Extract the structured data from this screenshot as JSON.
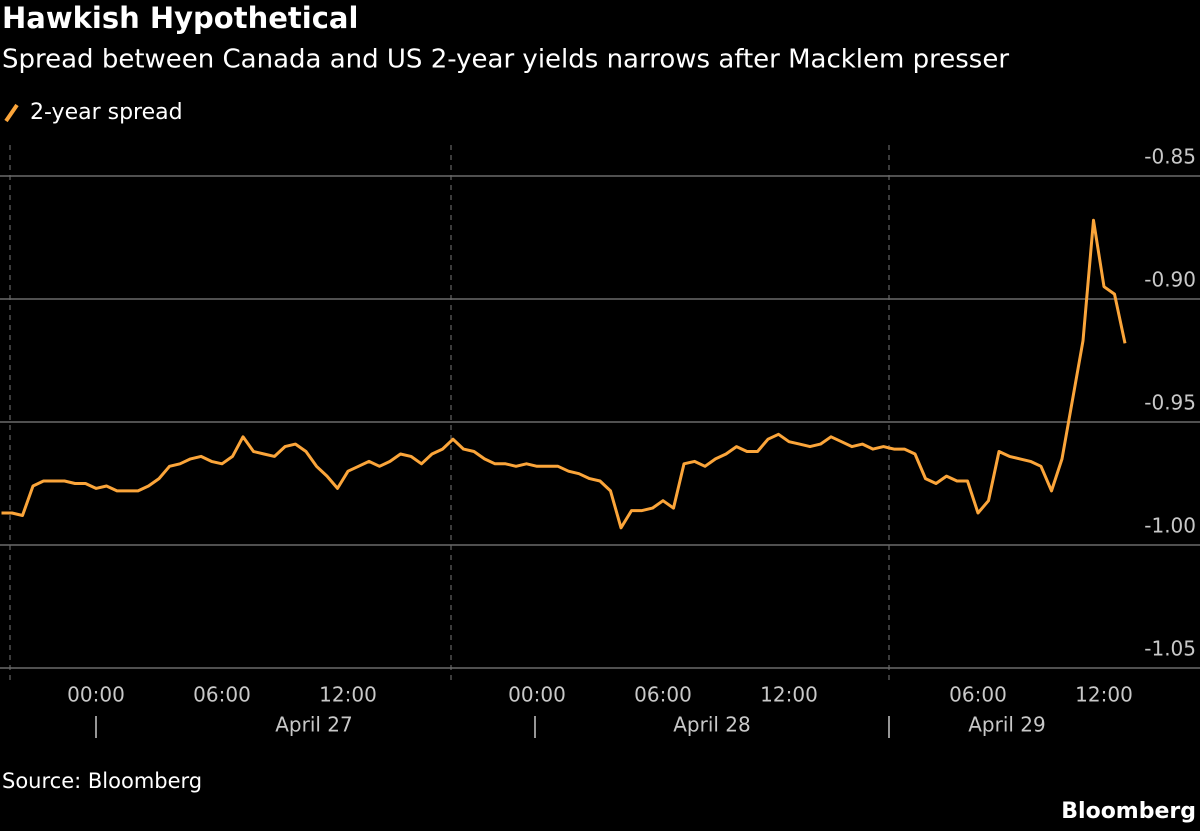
{
  "chart_data": {
    "type": "line",
    "title": "Hawkish Hypothetical",
    "subtitle": "Spread between Canada and US 2-year yields narrows after Macklem presser",
    "source": "Source: Bloomberg",
    "brand": "Bloomberg",
    "categories": [
      null,
      null,
      null,
      null,
      null,
      null,
      null,
      null,
      null,
      "00:00",
      null,
      null,
      null,
      null,
      null,
      null,
      null,
      null,
      null,
      null,
      null,
      "06:00",
      null,
      null,
      null,
      null,
      null,
      null,
      null,
      null,
      null,
      null,
      null,
      "12:00",
      null,
      null,
      null,
      null,
      null,
      null,
      null,
      null,
      null,
      null,
      null,
      null,
      null,
      null,
      null,
      null,
      null,
      "00:00",
      null,
      null,
      null,
      null,
      null,
      null,
      null,
      null,
      null,
      null,
      null,
      "06:00",
      null,
      null,
      null,
      null,
      null,
      null,
      null,
      null,
      null,
      null,
      null,
      "12:00",
      null,
      null,
      null,
      null,
      null,
      null,
      null,
      null,
      null,
      null,
      null,
      null,
      null,
      null,
      null,
      null,
      null,
      "06:00",
      null,
      null,
      null,
      null,
      null,
      null,
      null,
      null,
      null,
      null,
      null,
      "12:00",
      null,
      null
    ],
    "day_labels": [
      "April 27",
      "April 28",
      "April 29"
    ],
    "series": [
      {
        "name": "2-year spread",
        "color": "#fba53a",
        "values": [
          -0.987,
          -0.987,
          -0.988,
          -0.976,
          -0.974,
          -0.974,
          -0.974,
          -0.975,
          -0.975,
          -0.977,
          -0.976,
          -0.978,
          -0.978,
          -0.978,
          -0.976,
          -0.973,
          -0.968,
          -0.967,
          -0.965,
          -0.964,
          -0.966,
          -0.967,
          -0.964,
          -0.956,
          -0.962,
          -0.963,
          -0.964,
          -0.96,
          -0.959,
          -0.962,
          -0.968,
          -0.972,
          -0.977,
          -0.97,
          -0.968,
          -0.966,
          -0.968,
          -0.966,
          -0.963,
          -0.964,
          -0.967,
          -0.963,
          -0.961,
          -0.957,
          -0.961,
          -0.962,
          -0.965,
          -0.967,
          -0.967,
          -0.968,
          -0.967,
          -0.968,
          -0.968,
          -0.968,
          -0.97,
          -0.971,
          -0.973,
          -0.974,
          -0.978,
          -0.993,
          -0.986,
          -0.986,
          -0.985,
          -0.982,
          -0.985,
          -0.967,
          -0.966,
          -0.968,
          -0.965,
          -0.963,
          -0.96,
          -0.962,
          -0.962,
          -0.957,
          -0.955,
          -0.958,
          -0.959,
          -0.96,
          -0.959,
          -0.956,
          -0.958,
          -0.96,
          -0.959,
          -0.961,
          -0.96,
          -0.961,
          -0.961,
          -0.963,
          -0.973,
          -0.975,
          -0.972,
          -0.974,
          -0.974,
          -0.987,
          -0.982,
          -0.962,
          -0.964,
          -0.965,
          -0.966,
          -0.968,
          -0.978,
          -0.965,
          -0.941,
          -0.917,
          -0.868,
          -0.895,
          -0.898,
          -0.918
        ]
      }
    ],
    "ylim": [
      -1.05,
      -0.84
    ],
    "yticks": [
      -0.85,
      {
        "value": -0.9,
        "label": "-0.90"
      },
      -0.95,
      {
        "value": -1.0,
        "label": "-1.00"
      },
      -1.05
    ],
    "grid": true
  }
}
